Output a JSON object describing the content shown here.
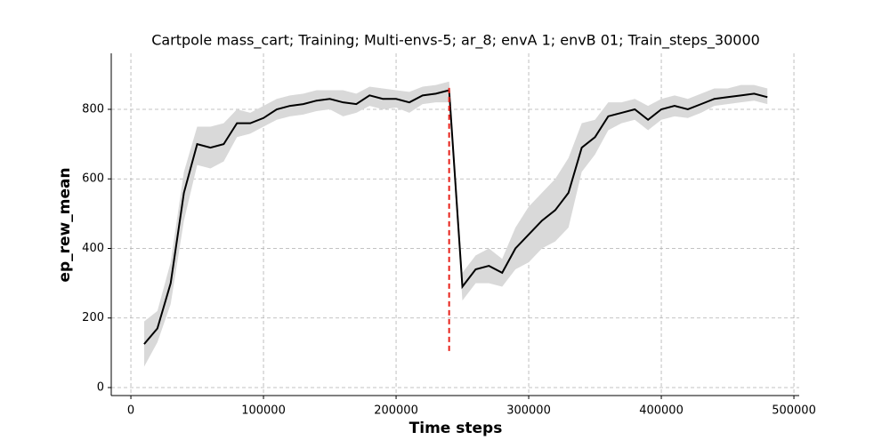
{
  "chart_data": {
    "type": "line",
    "title": "Cartpole mass_cart; Training; Multi-envs-5; ar_8; envA 1; envB 01; Train_steps_30000",
    "x_label": "Time steps",
    "y_label": "ep_rew_mean",
    "x": [
      10000,
      20000,
      30000,
      40000,
      50000,
      60000,
      70000,
      80000,
      90000,
      100000,
      110000,
      120000,
      130000,
      140000,
      150000,
      160000,
      170000,
      180000,
      190000,
      200000,
      210000,
      220000,
      230000,
      240000,
      250000,
      260000,
      270000,
      280000,
      290000,
      300000,
      310000,
      320000,
      330000,
      340000,
      350000,
      360000,
      370000,
      380000,
      390000,
      400000,
      410000,
      420000,
      430000,
      440000,
      450000,
      460000,
      470000,
      480000
    ],
    "series": [
      {
        "color": "#000000",
        "band_color": "#d9d9d9",
        "values": [
          125,
          170,
          300,
          560,
          700,
          690,
          700,
          760,
          760,
          775,
          800,
          810,
          815,
          825,
          830,
          820,
          815,
          840,
          830,
          830,
          820,
          840,
          845,
          855,
          290,
          340,
          350,
          330,
          400,
          440,
          480,
          510,
          560,
          690,
          720,
          780,
          790,
          800,
          770,
          800,
          810,
          800,
          815,
          830,
          835,
          840,
          845,
          835
        ],
        "lower": [
          60,
          130,
          240,
          480,
          640,
          630,
          650,
          720,
          730,
          750,
          770,
          780,
          785,
          795,
          800,
          780,
          790,
          810,
          800,
          805,
          790,
          815,
          820,
          820,
          250,
          300,
          300,
          290,
          340,
          360,
          400,
          420,
          460,
          620,
          670,
          740,
          760,
          770,
          740,
          770,
          780,
          775,
          790,
          810,
          815,
          820,
          825,
          815
        ],
        "upper": [
          190,
          220,
          360,
          620,
          750,
          750,
          760,
          800,
          790,
          810,
          830,
          840,
          845,
          855,
          855,
          855,
          845,
          865,
          860,
          855,
          850,
          865,
          870,
          880,
          330,
          380,
          400,
          370,
          460,
          520,
          560,
          600,
          660,
          760,
          770,
          820,
          820,
          830,
          810,
          830,
          840,
          830,
          845,
          860,
          860,
          870,
          870,
          860
        ]
      }
    ],
    "vline": {
      "x": 240000,
      "ymin": 105,
      "ymax": 870,
      "color": "#e8211a"
    },
    "xlim": [
      -14800,
      504000
    ],
    "ylim": [
      -23,
      961
    ],
    "xticks": [
      0,
      100000,
      200000,
      300000,
      400000,
      500000
    ],
    "yticks": [
      0,
      200,
      400,
      600,
      800
    ],
    "grid": true
  }
}
